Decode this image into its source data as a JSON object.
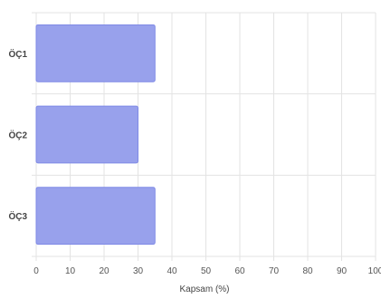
{
  "chart_data": {
    "type": "bar",
    "orientation": "horizontal",
    "categories": [
      "ÖÇ1",
      "ÖÇ2",
      "ÖÇ3"
    ],
    "values": [
      35,
      30,
      35
    ],
    "xlabel": "Kapsam (%)",
    "xlim": [
      0,
      100
    ],
    "xticks": [
      "0",
      "10",
      "20",
      "30",
      "40",
      "50",
      "60",
      "70",
      "80",
      "90",
      "100"
    ],
    "grid": true,
    "legend": "none",
    "colors": {
      "bar_fill": "#98a1ec",
      "bar_stroke": "#7f8ae6",
      "grid": "#e3e3e3"
    }
  }
}
